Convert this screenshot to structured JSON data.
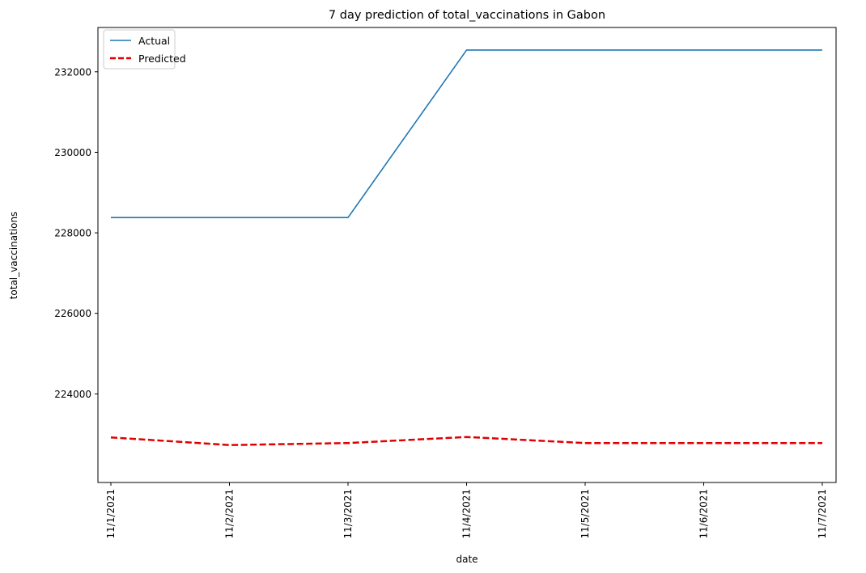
{
  "chart_data": {
    "type": "line",
    "title": "7 day prediction of total_vaccinations in Gabon",
    "xlabel": "date",
    "ylabel": "total_vaccinations",
    "categories": [
      "11/1/2021",
      "11/2/2021",
      "11/3/2021",
      "11/4/2021",
      "11/5/2021",
      "11/6/2021",
      "11/7/2021"
    ],
    "yticks": [
      224000,
      226000,
      228000,
      230000,
      232000
    ],
    "ylim": [
      221800,
      233100
    ],
    "grid": false,
    "legend_position": "top-left",
    "series": [
      {
        "name": "Actual",
        "values": [
          228380,
          228380,
          228380,
          232540,
          232540,
          232540,
          232540
        ],
        "color": "#1f77b4",
        "style": "solid"
      },
      {
        "name": "Predicted",
        "values": [
          222920,
          222730,
          222780,
          222930,
          222780,
          222780,
          222780
        ],
        "color": "#e00000",
        "style": "dashed"
      }
    ]
  }
}
